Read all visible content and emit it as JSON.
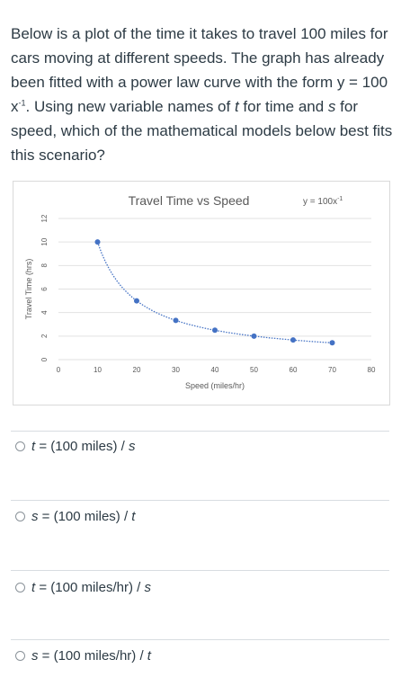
{
  "question": {
    "part1": "Below is a plot of the time it takes to travel 100 miles for cars moving at different speeds.  The graph has already been fitted with a power law curve with the form y = 100 x",
    "exponent": "-1",
    "part2": ".  Using new variable names of ",
    "var_t": "t",
    "part3": " for time and ",
    "var_s": "s",
    "part4": " for speed, which of the mathematical models below best fits this scenario?"
  },
  "chart_data": {
    "type": "scatter",
    "title": "Travel Time vs Speed",
    "xlabel": "Speed (miles/hr)",
    "ylabel": "Travel Time (hrs)",
    "equation_label": "y = 100x",
    "equation_exponent": "-1",
    "xlim": [
      0,
      80
    ],
    "ylim": [
      0,
      12
    ],
    "x_ticks": [
      "0",
      "10",
      "20",
      "30",
      "40",
      "50",
      "60",
      "70",
      "80"
    ],
    "y_ticks": [
      "0",
      "2",
      "4",
      "6",
      "8",
      "10",
      "12"
    ],
    "points": [
      {
        "x": 10,
        "y": 10
      },
      {
        "x": 20,
        "y": 5
      },
      {
        "x": 30,
        "y": 3.33
      },
      {
        "x": 40,
        "y": 2.5
      },
      {
        "x": 50,
        "y": 2
      },
      {
        "x": 60,
        "y": 1.67
      },
      {
        "x": 70,
        "y": 1.43
      }
    ],
    "trendline": "power",
    "grid": true,
    "point_color": "#4472c4"
  },
  "options": [
    {
      "var": "t",
      "rest": " = (100 miles) / ",
      "var2": "s"
    },
    {
      "var": "s",
      "rest": " = (100 miles) / ",
      "var2": "t"
    },
    {
      "var": "t",
      "rest": " = (100 miles/hr) / ",
      "var2": "s"
    },
    {
      "var": "s",
      "rest": " = (100 miles/hr) / ",
      "var2": "t"
    }
  ]
}
